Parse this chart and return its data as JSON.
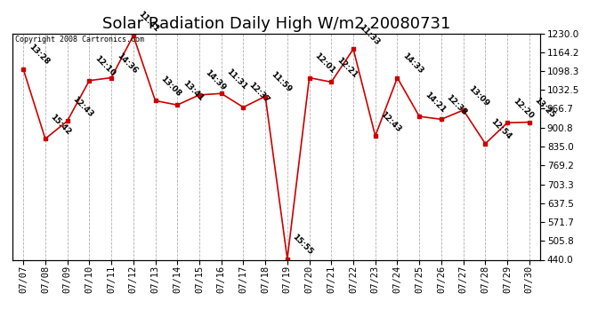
{
  "title": "Solar Radiation Daily High W/m2 20080731",
  "copyright": "Copyright 2008 Cartronics.com",
  "background_color": "#ffffff",
  "line_color": "#cc0000",
  "marker_color": "#cc0000",
  "grid_color": "#b0b0b0",
  "text_color": "#000000",
  "dates": [
    "07/07",
    "07/08",
    "07/09",
    "07/10",
    "07/11",
    "07/12",
    "07/13",
    "07/14",
    "07/15",
    "07/16",
    "07/17",
    "07/18",
    "07/19",
    "07/20",
    "07/21",
    "07/22",
    "07/23",
    "07/24",
    "07/25",
    "07/26",
    "07/27",
    "07/28",
    "07/29",
    "07/30"
  ],
  "values": [
    1105,
    862,
    924,
    1065,
    1075,
    1222,
    995,
    980,
    1015,
    1020,
    972,
    1010,
    443,
    1075,
    1060,
    1175,
    872,
    1075,
    940,
    930,
    962,
    845,
    918,
    920
  ],
  "times": [
    "13:28",
    "15:42",
    "12:43",
    "12:10",
    "14:36",
    "11:41",
    "13:08",
    "13:41",
    "14:39",
    "11:31",
    "12:37",
    "11:59",
    "15:55",
    "12:01",
    "12:21",
    "11:33",
    "12:43",
    "14:33",
    "14:21",
    "12:38",
    "13:09",
    "12:54",
    "12:20",
    "13:25"
  ],
  "ylim": [
    440,
    1230
  ],
  "yticks": [
    440.0,
    505.8,
    571.7,
    637.5,
    703.3,
    769.2,
    835.0,
    900.8,
    966.7,
    1032.5,
    1098.3,
    1164.2,
    1230.0
  ],
  "title_fontsize": 13,
  "tick_fontsize": 7.5,
  "annotation_fontsize": 6.5
}
